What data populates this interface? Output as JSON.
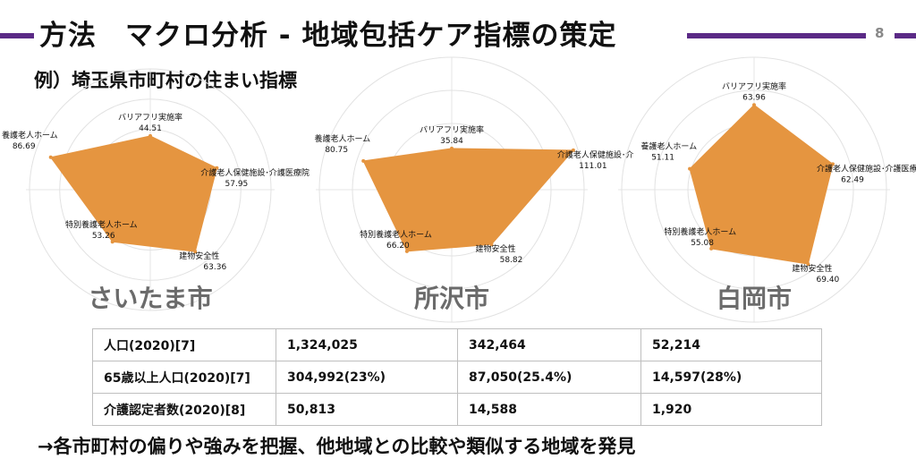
{
  "slide": {
    "title": "方法　マクロ分析 - 地域包括ケア指標の策定",
    "page_number": "8",
    "subtitle": "例）埼玉県市町村の住まい指標",
    "conclusion": "→各市町村の偏りや強みを把握、他地域との比較や類似する地域を発見",
    "accent_color": "#5b2a86"
  },
  "chart_data": [
    {
      "type": "radar",
      "title": "さいたま市",
      "fill_color": "#e59540",
      "categories": [
        "バリアフリ実施率",
        "介護老人保健施設･介護医療院",
        "建物安全性",
        "特別養護老人ホーム",
        "養護老人ホーム"
      ],
      "values": [
        44.51,
        57.95,
        63.36,
        53.26,
        86.69
      ],
      "value_labels": [
        "44.51",
        "57.95",
        "63.36",
        "53.26",
        "86.69"
      ],
      "rmax": 100
    },
    {
      "type": "radar",
      "title": "所沢市",
      "fill_color": "#e59540",
      "categories": [
        "バリアフリ実施率",
        "介護老人保健施設･介",
        "建物安全性",
        "特別養護老人ホーム",
        "養護老人ホーム"
      ],
      "values": [
        35.84,
        111.01,
        58.82,
        66.2,
        80.75
      ],
      "value_labels": [
        "35.84",
        "111.01",
        "58.82",
        "66.20",
        "80.75"
      ],
      "rmax": 115
    },
    {
      "type": "radar",
      "title": "白岡市",
      "fill_color": "#e59540",
      "categories": [
        "バリアフリ実施率",
        "介護老人保健施設･介護医療院",
        "建物安全性",
        "特別養護老人ホーム",
        "養護老人ホーム"
      ],
      "values": [
        63.96,
        62.49,
        69.4,
        55.08,
        51.11
      ],
      "value_labels": [
        "63.96",
        "62.49",
        "69.40",
        "55.08",
        "51.11"
      ],
      "rmax": 100
    }
  ],
  "table": {
    "rows": [
      [
        "人口(2020)[7]",
        "1,324,025",
        "342,464",
        "52,214"
      ],
      [
        "65歳以上人口(2020)[7]",
        "304,992(23%)",
        "87,050(25.4%)",
        "14,597(28%)"
      ],
      [
        "介護認定者数(2020)[8]",
        "50,813",
        "14,588",
        "1,920"
      ]
    ]
  }
}
